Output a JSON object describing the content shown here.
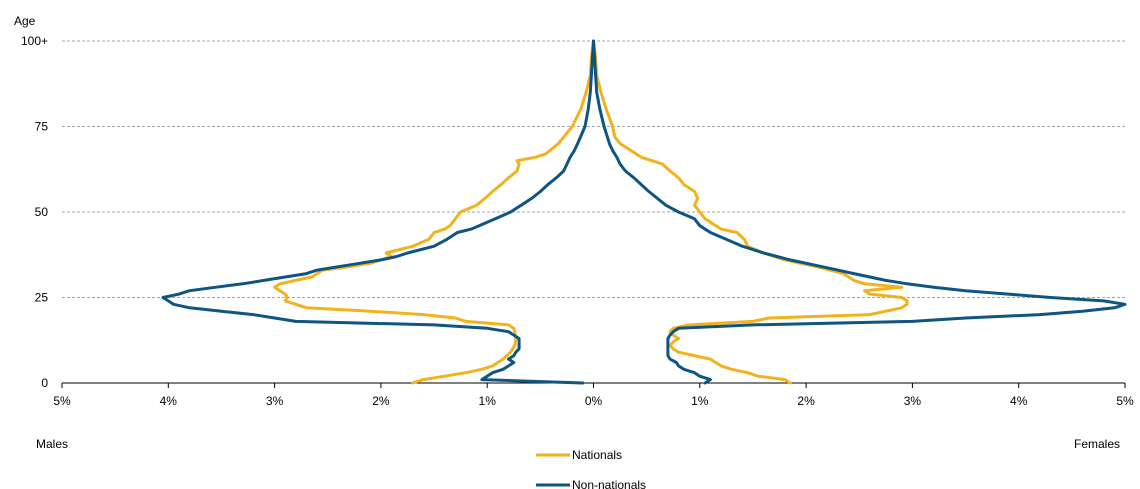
{
  "chart_data": {
    "type": "line",
    "chart_subtype": "population pyramid",
    "y_axis_title": "Age",
    "ylim": [
      0,
      100
    ],
    "y_ticks": [
      0,
      25,
      50,
      75,
      100
    ],
    "y_tick_labels": [
      "0",
      "25",
      "50",
      "75",
      "100+"
    ],
    "xlim": [
      -5,
      5
    ],
    "x_ticks": [
      -5,
      -4,
      -3,
      -2,
      -1,
      0,
      1,
      2,
      3,
      4,
      5
    ],
    "x_tick_labels": [
      "5%",
      "4%",
      "3%",
      "2%",
      "1%",
      "0%",
      "1%",
      "2%",
      "3%",
      "4%",
      "5%"
    ],
    "left_side_label": "Males",
    "right_side_label": "Females",
    "grid": "horizontal dashed",
    "legend_position": "bottom-center",
    "series": [
      {
        "name": "Nationals",
        "color": "#f2b21b",
        "males": [
          [
            0,
            1.7
          ],
          [
            1,
            1.6
          ],
          [
            2,
            1.4
          ],
          [
            3,
            1.2
          ],
          [
            4,
            1.05
          ],
          [
            5,
            0.95
          ],
          [
            7,
            0.85
          ],
          [
            9,
            0.78
          ],
          [
            11,
            0.74
          ],
          [
            13,
            0.73
          ],
          [
            15,
            0.74
          ],
          [
            16,
            0.75
          ],
          [
            17,
            0.8
          ],
          [
            18,
            1.2
          ],
          [
            19,
            1.3
          ],
          [
            20,
            1.6
          ],
          [
            21,
            2.1
          ],
          [
            22,
            2.7
          ],
          [
            23,
            2.8
          ],
          [
            24,
            2.9
          ],
          [
            25,
            2.88
          ],
          [
            26,
            2.9
          ],
          [
            27,
            2.95
          ],
          [
            28,
            3.0
          ],
          [
            29,
            2.95
          ],
          [
            30,
            2.8
          ],
          [
            31,
            2.65
          ],
          [
            32,
            2.6
          ],
          [
            33,
            2.55
          ],
          [
            34,
            2.3
          ],
          [
            35,
            2.1
          ],
          [
            36,
            2.0
          ],
          [
            37,
            1.9
          ],
          [
            38,
            1.95
          ],
          [
            40,
            1.7
          ],
          [
            42,
            1.55
          ],
          [
            44,
            1.5
          ],
          [
            45,
            1.4
          ],
          [
            46,
            1.35
          ],
          [
            48,
            1.3
          ],
          [
            50,
            1.25
          ],
          [
            52,
            1.1
          ],
          [
            54,
            1.02
          ],
          [
            56,
            0.95
          ],
          [
            58,
            0.87
          ],
          [
            60,
            0.8
          ],
          [
            62,
            0.72
          ],
          [
            64,
            0.7
          ],
          [
            65,
            0.72
          ],
          [
            66,
            0.55
          ],
          [
            67,
            0.45
          ],
          [
            70,
            0.33
          ],
          [
            75,
            0.2
          ],
          [
            80,
            0.12
          ],
          [
            85,
            0.07
          ],
          [
            90,
            0.03
          ],
          [
            95,
            0.02
          ],
          [
            100,
            0.0
          ]
        ],
        "females": [
          [
            0,
            1.85
          ],
          [
            1,
            1.8
          ],
          [
            2,
            1.55
          ],
          [
            3,
            1.45
          ],
          [
            4,
            1.3
          ],
          [
            5,
            1.2
          ],
          [
            6,
            1.15
          ],
          [
            7,
            1.1
          ],
          [
            8,
            0.95
          ],
          [
            9,
            0.8
          ],
          [
            10,
            0.75
          ],
          [
            11,
            0.72
          ],
          [
            12,
            0.75
          ],
          [
            13,
            0.8
          ],
          [
            14,
            0.75
          ],
          [
            15,
            0.72
          ],
          [
            16,
            0.75
          ],
          [
            17,
            0.9
          ],
          [
            18,
            1.5
          ],
          [
            19,
            1.65
          ],
          [
            20,
            2.6
          ],
          [
            21,
            2.75
          ],
          [
            22,
            2.9
          ],
          [
            23,
            2.95
          ],
          [
            24,
            2.95
          ],
          [
            25,
            2.9
          ],
          [
            26,
            2.6
          ],
          [
            27,
            2.55
          ],
          [
            28,
            2.9
          ],
          [
            29,
            2.55
          ],
          [
            30,
            2.45
          ],
          [
            32,
            2.35
          ],
          [
            34,
            2.1
          ],
          [
            36,
            1.8
          ],
          [
            38,
            1.6
          ],
          [
            40,
            1.45
          ],
          [
            42,
            1.42
          ],
          [
            44,
            1.35
          ],
          [
            45,
            1.2
          ],
          [
            46,
            1.15
          ],
          [
            48,
            1.05
          ],
          [
            50,
            1.0
          ],
          [
            52,
            0.95
          ],
          [
            54,
            0.98
          ],
          [
            56,
            0.95
          ],
          [
            58,
            0.85
          ],
          [
            60,
            0.8
          ],
          [
            62,
            0.72
          ],
          [
            64,
            0.65
          ],
          [
            66,
            0.45
          ],
          [
            68,
            0.35
          ],
          [
            70,
            0.25
          ],
          [
            72,
            0.2
          ],
          [
            75,
            0.18
          ],
          [
            80,
            0.12
          ],
          [
            85,
            0.07
          ],
          [
            90,
            0.03
          ],
          [
            95,
            0.02
          ],
          [
            100,
            0.0
          ]
        ]
      },
      {
        "name": "Non-nationals",
        "color": "#0f5581",
        "males": [
          [
            0,
            0.1
          ],
          [
            1,
            1.05
          ],
          [
            2,
            1.0
          ],
          [
            3,
            0.95
          ],
          [
            4,
            0.85
          ],
          [
            5,
            0.8
          ],
          [
            6,
            0.75
          ],
          [
            7,
            0.8
          ],
          [
            8,
            0.75
          ],
          [
            9,
            0.73
          ],
          [
            10,
            0.7
          ],
          [
            11,
            0.7
          ],
          [
            12,
            0.7
          ],
          [
            13,
            0.7
          ],
          [
            14,
            0.75
          ],
          [
            15,
            0.8
          ],
          [
            16,
            1.0
          ],
          [
            17,
            1.5
          ],
          [
            18,
            2.8
          ],
          [
            19,
            3.0
          ],
          [
            20,
            3.2
          ],
          [
            21,
            3.5
          ],
          [
            22,
            3.8
          ],
          [
            23,
            3.95
          ],
          [
            24,
            4.0
          ],
          [
            25,
            4.05
          ],
          [
            26,
            3.9
          ],
          [
            27,
            3.8
          ],
          [
            28,
            3.55
          ],
          [
            29,
            3.3
          ],
          [
            30,
            3.1
          ],
          [
            31,
            2.9
          ],
          [
            32,
            2.7
          ],
          [
            33,
            2.6
          ],
          [
            34,
            2.4
          ],
          [
            35,
            2.2
          ],
          [
            36,
            2.0
          ],
          [
            37,
            1.85
          ],
          [
            38,
            1.75
          ],
          [
            40,
            1.5
          ],
          [
            42,
            1.38
          ],
          [
            44,
            1.28
          ],
          [
            45,
            1.15
          ],
          [
            47,
            1.0
          ],
          [
            49,
            0.85
          ],
          [
            50,
            0.78
          ],
          [
            52,
            0.68
          ],
          [
            54,
            0.58
          ],
          [
            56,
            0.5
          ],
          [
            58,
            0.43
          ],
          [
            60,
            0.35
          ],
          [
            62,
            0.28
          ],
          [
            64,
            0.25
          ],
          [
            66,
            0.22
          ],
          [
            68,
            0.18
          ],
          [
            70,
            0.15
          ],
          [
            75,
            0.08
          ],
          [
            80,
            0.05
          ],
          [
            85,
            0.03
          ],
          [
            90,
            0.02
          ],
          [
            95,
            0.01
          ],
          [
            100,
            0.0
          ]
        ],
        "females": [
          [
            0,
            1.05
          ],
          [
            1,
            1.1
          ],
          [
            2,
            1.0
          ],
          [
            3,
            0.95
          ],
          [
            4,
            0.85
          ],
          [
            5,
            0.8
          ],
          [
            6,
            0.78
          ],
          [
            7,
            0.72
          ],
          [
            8,
            0.7
          ],
          [
            10,
            0.7
          ],
          [
            11,
            0.7
          ],
          [
            12,
            0.7
          ],
          [
            13,
            0.7
          ],
          [
            14,
            0.72
          ],
          [
            15,
            0.75
          ],
          [
            16,
            0.8
          ],
          [
            17,
            1.5
          ],
          [
            18,
            3.0
          ],
          [
            19,
            3.5
          ],
          [
            20,
            4.2
          ],
          [
            21,
            4.6
          ],
          [
            22,
            4.9
          ],
          [
            23,
            5.0
          ],
          [
            24,
            4.8
          ],
          [
            25,
            4.3
          ],
          [
            26,
            3.9
          ],
          [
            27,
            3.5
          ],
          [
            28,
            3.2
          ],
          [
            29,
            2.95
          ],
          [
            30,
            2.75
          ],
          [
            32,
            2.45
          ],
          [
            34,
            2.15
          ],
          [
            36,
            1.85
          ],
          [
            38,
            1.6
          ],
          [
            40,
            1.4
          ],
          [
            42,
            1.25
          ],
          [
            44,
            1.1
          ],
          [
            46,
            1.0
          ],
          [
            48,
            0.95
          ],
          [
            50,
            0.8
          ],
          [
            52,
            0.68
          ],
          [
            54,
            0.6
          ],
          [
            56,
            0.52
          ],
          [
            58,
            0.45
          ],
          [
            60,
            0.38
          ],
          [
            62,
            0.3
          ],
          [
            64,
            0.25
          ],
          [
            66,
            0.22
          ],
          [
            68,
            0.18
          ],
          [
            70,
            0.15
          ],
          [
            75,
            0.1
          ],
          [
            80,
            0.06
          ],
          [
            85,
            0.03
          ],
          [
            90,
            0.02
          ],
          [
            95,
            0.01
          ],
          [
            100,
            0.0
          ]
        ]
      }
    ]
  }
}
